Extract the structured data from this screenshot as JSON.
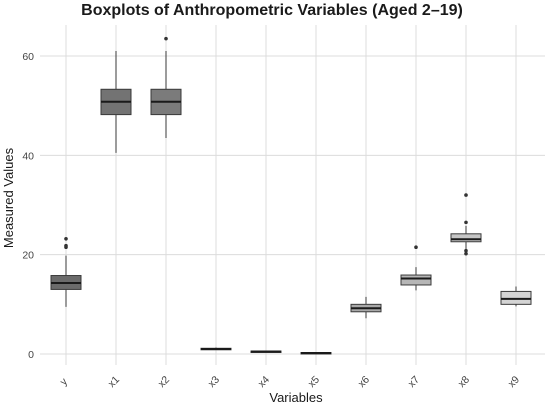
{
  "chart_data": {
    "type": "boxplot",
    "title": "Boxplots of Anthropometric Variables (Aged 2–19)",
    "xlabel": "Variables",
    "ylabel": "Measured Values",
    "ylim": [
      -3,
      66
    ],
    "yticks": [
      0,
      20,
      40,
      60
    ],
    "grid": true,
    "legend": "none",
    "categories": [
      "y",
      "x1",
      "x2",
      "x3",
      "x4",
      "x5",
      "x6",
      "x7",
      "x8",
      "x9"
    ],
    "boxes": [
      {
        "name": "y",
        "whisker_low": 9.5,
        "q1": 13.0,
        "median": 14.3,
        "q3": 15.8,
        "whisker_high": 19.8,
        "outliers": [
          21.5,
          21.8,
          23.2
        ],
        "fill": "#6b6b6b"
      },
      {
        "name": "x1",
        "whisker_low": 40.5,
        "q1": 48.2,
        "median": 50.8,
        "q3": 53.3,
        "whisker_high": 61.0,
        "outliers": [],
        "fill": "#737373"
      },
      {
        "name": "x2",
        "whisker_low": 43.5,
        "q1": 48.2,
        "median": 50.8,
        "q3": 53.3,
        "whisker_high": 61.0,
        "outliers": [
          63.5
        ],
        "fill": "#7b7b7b"
      },
      {
        "name": "x3",
        "whisker_low": 0.8,
        "q1": 0.9,
        "median": 1.0,
        "q3": 1.15,
        "whisker_high": 1.3,
        "outliers": [],
        "fill": "#848484"
      },
      {
        "name": "x4",
        "whisker_low": 0.3,
        "q1": 0.4,
        "median": 0.5,
        "q3": 0.6,
        "whisker_high": 0.7,
        "outliers": [],
        "fill": "#8e8e8e"
      },
      {
        "name": "x5",
        "whisker_low": 0.05,
        "q1": 0.15,
        "median": 0.2,
        "q3": 0.3,
        "whisker_high": 0.4,
        "outliers": [],
        "fill": "#9a9a9a"
      },
      {
        "name": "x6",
        "whisker_low": 7.2,
        "q1": 8.5,
        "median": 9.2,
        "q3": 10.0,
        "whisker_high": 11.5,
        "outliers": [],
        "fill": "#a8a8a8"
      },
      {
        "name": "x7",
        "whisker_low": 12.8,
        "q1": 13.9,
        "median": 15.2,
        "q3": 15.9,
        "whisker_high": 17.5,
        "outliers": [
          21.5
        ],
        "fill": "#b6b6b6"
      },
      {
        "name": "x8",
        "whisker_low": 21.0,
        "q1": 22.6,
        "median": 23.1,
        "q3": 24.2,
        "whisker_high": 25.8,
        "outliers": [
          20.2,
          20.8,
          26.5,
          32.0
        ],
        "fill": "#c5c5c5"
      },
      {
        "name": "x9",
        "whisker_low": 9.6,
        "q1": 10.0,
        "median": 11.1,
        "q3": 12.6,
        "whisker_high": 13.6,
        "outliers": [],
        "fill": "#d4d4d4"
      }
    ],
    "colors": {
      "grid": "#dcdcdc",
      "box_stroke": "#3a3a3a",
      "median": "#1a1a1a",
      "outlier": "#333333"
    }
  }
}
